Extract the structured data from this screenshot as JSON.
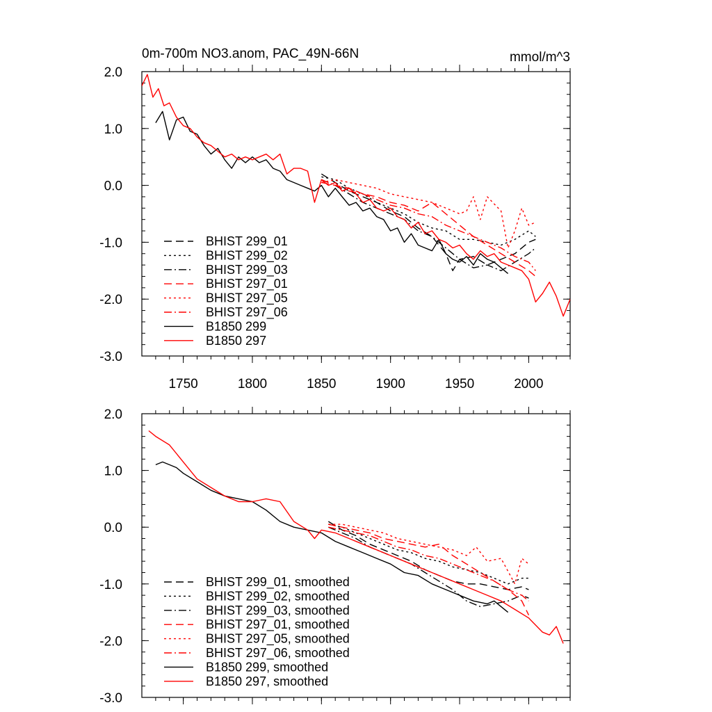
{
  "colors": {
    "black": "#000000",
    "red": "#ff0000"
  },
  "chart_data": [
    {
      "type": "line",
      "title": "0m-700m NO3.anom, PAC_49N-66N",
      "units": "mmol/m^3",
      "xlabel": "",
      "ylabel": "",
      "xlim": [
        1720,
        2030
      ],
      "ylim": [
        -3.0,
        2.0
      ],
      "xticks": [
        1750,
        1800,
        1850,
        1900,
        1950,
        2000
      ],
      "xtick_labels": [
        "1750",
        "1800",
        "1850",
        "1900",
        "1950",
        "2000"
      ],
      "yticks": [
        2.0,
        1.0,
        0.0,
        -1.0,
        -2.0,
        -3.0
      ],
      "ytick_labels": [
        "2.0",
        "1.0",
        "0.0",
        "-1.0",
        "-2.0",
        "-3.0"
      ],
      "legend_position": "bottom-left",
      "series": [
        {
          "name": "BHIST 299_01",
          "color": "#000000",
          "dash": "dash",
          "x": [
            1850,
            1860,
            1870,
            1880,
            1890,
            1900,
            1910,
            1920,
            1930,
            1940,
            1945,
            1950,
            1960,
            1970,
            1980,
            1990,
            2000,
            2005
          ],
          "y": [
            0.2,
            0.05,
            -0.1,
            -0.2,
            -0.3,
            -0.45,
            -0.55,
            -0.75,
            -0.9,
            -1.2,
            -1.5,
            -1.3,
            -1.25,
            -1.4,
            -1.3,
            -1.2,
            -1.0,
            -0.95
          ]
        },
        {
          "name": "BHIST 299_02",
          "color": "#000000",
          "dash": "dot",
          "x": [
            1850,
            1860,
            1870,
            1880,
            1890,
            1900,
            1910,
            1920,
            1930,
            1940,
            1950,
            1960,
            1970,
            1980,
            1990,
            2000,
            2005
          ],
          "y": [
            0.15,
            0.1,
            -0.05,
            -0.15,
            -0.3,
            -0.4,
            -0.5,
            -0.65,
            -0.75,
            -0.8,
            -0.95,
            -0.95,
            -1.0,
            -1.05,
            -0.95,
            -0.8,
            -0.9
          ]
        },
        {
          "name": "BHIST 299_03",
          "color": "#000000",
          "dash": "dashdot",
          "x": [
            1850,
            1860,
            1870,
            1880,
            1890,
            1900,
            1910,
            1920,
            1930,
            1940,
            1950,
            1960,
            1970,
            1980,
            1990,
            2000,
            2005
          ],
          "y": [
            0.1,
            0.0,
            -0.15,
            -0.3,
            -0.4,
            -0.5,
            -0.6,
            -0.8,
            -0.9,
            -1.1,
            -1.3,
            -1.45,
            -1.4,
            -1.5,
            -1.35,
            -1.2,
            -1.1
          ]
        },
        {
          "name": "BHIST 297_01",
          "color": "#ff0000",
          "dash": "dash",
          "x": [
            1850,
            1860,
            1870,
            1880,
            1890,
            1900,
            1910,
            1920,
            1930,
            1940,
            1950,
            1960,
            1970,
            1980,
            1990,
            2000,
            2005
          ],
          "y": [
            0.05,
            0.0,
            -0.05,
            -0.15,
            -0.2,
            -0.3,
            -0.35,
            -0.45,
            -0.3,
            -0.5,
            -0.7,
            -0.9,
            -1.05,
            -1.2,
            -1.35,
            -1.5,
            -1.6
          ]
        },
        {
          "name": "BHIST 297_05",
          "color": "#ff0000",
          "dash": "dot",
          "x": [
            1850,
            1860,
            1870,
            1880,
            1890,
            1900,
            1910,
            1920,
            1930,
            1940,
            1950,
            1955,
            1960,
            1965,
            1970,
            1980,
            1985,
            1990,
            1995,
            2000,
            2005
          ],
          "y": [
            0.05,
            0.1,
            0.05,
            0.0,
            -0.05,
            -0.15,
            -0.2,
            -0.25,
            -0.3,
            -0.4,
            -0.5,
            -0.45,
            -0.2,
            -0.6,
            -0.2,
            -0.45,
            -1.1,
            -0.8,
            -0.4,
            -0.7,
            -0.65
          ]
        },
        {
          "name": "BHIST 297_06",
          "color": "#ff0000",
          "dash": "dashdot",
          "x": [
            1850,
            1860,
            1870,
            1880,
            1890,
            1900,
            1910,
            1920,
            1930,
            1940,
            1950,
            1960,
            1970,
            1980,
            1990,
            2000,
            2005
          ],
          "y": [
            0.1,
            0.0,
            -0.1,
            -0.15,
            -0.25,
            -0.35,
            -0.4,
            -0.5,
            -0.55,
            -0.7,
            -0.8,
            -0.9,
            -1.0,
            -1.1,
            -1.25,
            -1.35,
            -1.5
          ]
        },
        {
          "name": "B1850 299",
          "color": "#000000",
          "dash": "solid",
          "x": [
            1730,
            1735,
            1740,
            1745,
            1750,
            1755,
            1760,
            1765,
            1770,
            1775,
            1780,
            1785,
            1790,
            1795,
            1800,
            1805,
            1810,
            1815,
            1820,
            1825,
            1830,
            1835,
            1840,
            1845,
            1850,
            1855,
            1860,
            1865,
            1870,
            1875,
            1880,
            1885,
            1890,
            1895,
            1900,
            1905,
            1910,
            1915,
            1920,
            1925,
            1930,
            1935,
            1940,
            1945,
            1950,
            1955,
            1960,
            1965,
            1970,
            1975,
            1980,
            1985
          ],
          "y": [
            1.1,
            1.3,
            0.8,
            1.15,
            1.2,
            0.95,
            0.9,
            0.7,
            0.55,
            0.65,
            0.45,
            0.3,
            0.5,
            0.4,
            0.5,
            0.4,
            0.45,
            0.3,
            0.25,
            0.1,
            0.05,
            0.0,
            -0.05,
            -0.1,
            0.0,
            -0.2,
            -0.05,
            -0.2,
            -0.35,
            -0.3,
            -0.45,
            -0.4,
            -0.55,
            -0.6,
            -0.8,
            -0.75,
            -1.0,
            -0.85,
            -1.05,
            -1.1,
            -1.15,
            -0.95,
            -1.2,
            -1.3,
            -1.35,
            -1.25,
            -1.4,
            -1.2,
            -1.3,
            -1.35,
            -1.45,
            -1.55
          ]
        },
        {
          "name": "B1850 297",
          "color": "#ff0000",
          "dash": "solid",
          "x": [
            1720,
            1724,
            1728,
            1732,
            1736,
            1740,
            1745,
            1750,
            1755,
            1760,
            1765,
            1770,
            1775,
            1780,
            1785,
            1790,
            1795,
            1800,
            1805,
            1810,
            1815,
            1820,
            1825,
            1830,
            1835,
            1840,
            1845,
            1850,
            1855,
            1860,
            1865,
            1870,
            1875,
            1880,
            1885,
            1890,
            1895,
            1900,
            1905,
            1910,
            1915,
            1920,
            1925,
            1930,
            1935,
            1940,
            1945,
            1950,
            1955,
            1960,
            1965,
            1970,
            1975,
            1980,
            1985,
            1990,
            1995,
            2000,
            2005,
            2010,
            2015,
            2020,
            2025,
            2030
          ],
          "y": [
            1.75,
            1.95,
            1.55,
            1.7,
            1.4,
            1.45,
            1.2,
            1.05,
            1.0,
            0.85,
            0.75,
            0.7,
            0.6,
            0.5,
            0.55,
            0.45,
            0.5,
            0.45,
            0.5,
            0.55,
            0.45,
            0.55,
            0.2,
            0.3,
            0.3,
            0.25,
            -0.3,
            0.1,
            0.0,
            0.05,
            -0.1,
            -0.05,
            -0.15,
            -0.3,
            -0.25,
            -0.4,
            -0.45,
            -0.4,
            -0.55,
            -0.6,
            -0.75,
            -0.65,
            -0.85,
            -0.8,
            -0.95,
            -1.0,
            -1.1,
            -1.05,
            -1.2,
            -1.3,
            -1.15,
            -1.25,
            -1.2,
            -1.35,
            -1.4,
            -1.45,
            -1.5,
            -1.65,
            -2.05,
            -1.9,
            -1.7,
            -1.95,
            -2.3,
            -2.0
          ]
        }
      ]
    },
    {
      "type": "line",
      "title": "",
      "xlabel": "",
      "ylabel": "",
      "xlim": [
        1720,
        2030
      ],
      "ylim": [
        -3.0,
        2.0
      ],
      "xticks": [
        1750,
        1800,
        1850,
        1900,
        1950,
        2000
      ],
      "xtick_labels": [],
      "yticks": [
        2.0,
        1.0,
        0.0,
        -1.0,
        -2.0,
        -3.0
      ],
      "ytick_labels": [
        "2.0",
        "1.0",
        "0.0",
        "-1.0",
        "-2.0",
        "-3.0"
      ],
      "legend_position": "bottom-left",
      "series": [
        {
          "name": "BHIST 299_01, smoothed",
          "color": "#000000",
          "dash": "dash",
          "x": [
            1855,
            1865,
            1875,
            1885,
            1895,
            1905,
            1915,
            1925,
            1935,
            1945,
            1955,
            1965,
            1975,
            1985,
            1995,
            2000
          ],
          "y": [
            0.1,
            -0.05,
            -0.15,
            -0.3,
            -0.4,
            -0.5,
            -0.6,
            -0.75,
            -0.85,
            -0.95,
            -1.0,
            -1.0,
            -1.05,
            -1.1,
            -1.05,
            -1.1
          ]
        },
        {
          "name": "BHIST 299_02, smoothed",
          "color": "#000000",
          "dash": "dot",
          "x": [
            1855,
            1865,
            1875,
            1885,
            1895,
            1905,
            1915,
            1925,
            1935,
            1945,
            1955,
            1965,
            1975,
            1985,
            1995,
            2000
          ],
          "y": [
            0.05,
            0.0,
            -0.1,
            -0.2,
            -0.3,
            -0.4,
            -0.45,
            -0.55,
            -0.6,
            -0.7,
            -0.75,
            -0.8,
            -0.9,
            -1.0,
            -0.9,
            -0.9
          ]
        },
        {
          "name": "BHIST 299_03, smoothed",
          "color": "#000000",
          "dash": "dashdot",
          "x": [
            1855,
            1865,
            1875,
            1885,
            1895,
            1905,
            1915,
            1925,
            1935,
            1945,
            1955,
            1965,
            1975,
            1985,
            1995,
            2000
          ],
          "y": [
            0.0,
            -0.1,
            -0.2,
            -0.35,
            -0.45,
            -0.55,
            -0.65,
            -0.8,
            -0.95,
            -1.1,
            -1.3,
            -1.4,
            -1.35,
            -1.3,
            -1.2,
            -1.25
          ]
        },
        {
          "name": "BHIST 297_01, smoothed",
          "color": "#ff0000",
          "dash": "dash",
          "x": [
            1855,
            1865,
            1875,
            1885,
            1895,
            1905,
            1915,
            1925,
            1935,
            1945,
            1955,
            1965,
            1975,
            1985,
            1995,
            2000
          ],
          "y": [
            0.05,
            0.0,
            -0.05,
            -0.1,
            -0.2,
            -0.25,
            -0.3,
            -0.35,
            -0.3,
            -0.5,
            -0.65,
            -0.8,
            -0.95,
            -1.1,
            -1.3,
            -1.55
          ]
        },
        {
          "name": "BHIST 297_05, smoothed",
          "color": "#ff0000",
          "dash": "dot",
          "x": [
            1855,
            1865,
            1875,
            1885,
            1895,
            1905,
            1915,
            1925,
            1935,
            1945,
            1955,
            1962,
            1970,
            1980,
            1990,
            1995,
            2000
          ],
          "y": [
            0.05,
            0.05,
            0.0,
            -0.05,
            -0.1,
            -0.2,
            -0.25,
            -0.3,
            -0.35,
            -0.4,
            -0.5,
            -0.35,
            -0.6,
            -0.55,
            -1.0,
            -0.55,
            -0.65
          ]
        },
        {
          "name": "BHIST 297_06, smoothed",
          "color": "#ff0000",
          "dash": "dashdot",
          "x": [
            1855,
            1865,
            1875,
            1885,
            1895,
            1905,
            1915,
            1925,
            1935,
            1945,
            1955,
            1965,
            1975,
            1985,
            1995,
            2000
          ],
          "y": [
            0.0,
            -0.05,
            -0.1,
            -0.15,
            -0.25,
            -0.35,
            -0.4,
            -0.5,
            -0.55,
            -0.65,
            -0.75,
            -0.85,
            -0.95,
            -1.1,
            -1.2,
            -1.3
          ]
        },
        {
          "name": "B1850 299, smoothed",
          "color": "#000000",
          "dash": "solid",
          "x": [
            1730,
            1735,
            1740,
            1745,
            1750,
            1760,
            1770,
            1780,
            1790,
            1800,
            1810,
            1820,
            1830,
            1840,
            1850,
            1860,
            1870,
            1880,
            1890,
            1900,
            1910,
            1920,
            1930,
            1940,
            1950,
            1960,
            1970,
            1975,
            1980,
            1985
          ],
          "y": [
            1.1,
            1.15,
            1.1,
            1.05,
            0.95,
            0.8,
            0.65,
            0.55,
            0.5,
            0.45,
            0.3,
            0.1,
            0.0,
            -0.05,
            -0.1,
            -0.25,
            -0.35,
            -0.45,
            -0.55,
            -0.65,
            -0.8,
            -0.85,
            -1.0,
            -1.1,
            -1.2,
            -1.3,
            -1.35,
            -1.3,
            -1.4,
            -1.5
          ]
        },
        {
          "name": "B1850 297, smoothed",
          "color": "#ff0000",
          "dash": "solid",
          "x": [
            1725,
            1730,
            1740,
            1750,
            1760,
            1770,
            1780,
            1790,
            1800,
            1810,
            1820,
            1830,
            1840,
            1845,
            1850,
            1860,
            1870,
            1880,
            1890,
            1900,
            1910,
            1920,
            1930,
            1940,
            1950,
            1960,
            1970,
            1980,
            1990,
            2000,
            2010,
            2015,
            2020,
            2025
          ],
          "y": [
            1.7,
            1.6,
            1.45,
            1.15,
            0.85,
            0.7,
            0.55,
            0.45,
            0.45,
            0.5,
            0.45,
            0.1,
            -0.05,
            -0.2,
            -0.05,
            -0.1,
            -0.2,
            -0.3,
            -0.4,
            -0.5,
            -0.6,
            -0.7,
            -0.8,
            -0.9,
            -1.0,
            -1.1,
            -1.2,
            -1.3,
            -1.45,
            -1.6,
            -1.85,
            -1.9,
            -1.75,
            -2.05
          ]
        }
      ]
    }
  ]
}
